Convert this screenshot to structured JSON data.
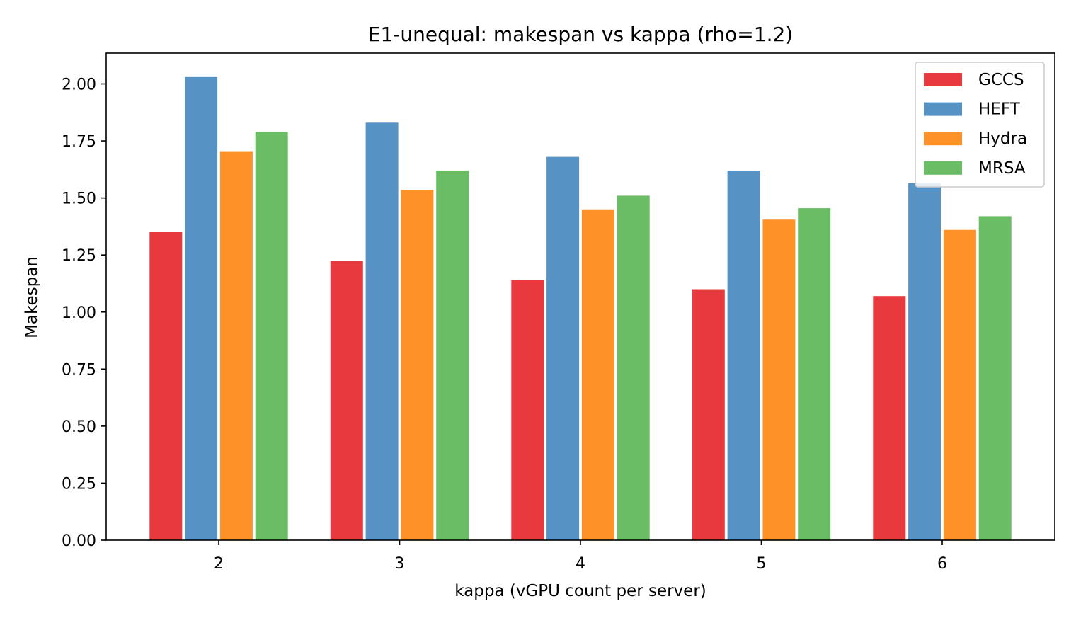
{
  "chart_data": {
    "type": "bar",
    "title": "E1-unequal: makespan vs kappa (rho=1.2)",
    "xlabel": "kappa (vGPU count per server)",
    "ylabel": "Makespan",
    "categories": [
      "2",
      "3",
      "4",
      "5",
      "6"
    ],
    "ylim": [
      0,
      2.135
    ],
    "yticks": [
      "0.00",
      "0.25",
      "0.50",
      "0.75",
      "1.00",
      "1.25",
      "1.50",
      "1.75",
      "2.00"
    ],
    "legend_position": "top-right",
    "grid": false,
    "series": [
      {
        "name": "GCCS",
        "color": "#e8393e",
        "values": [
          1.35,
          1.225,
          1.14,
          1.1,
          1.07
        ]
      },
      {
        "name": "HEFT",
        "color": "#5692c3",
        "values": [
          2.03,
          1.83,
          1.68,
          1.62,
          1.565
        ]
      },
      {
        "name": "Hydra",
        "color": "#fe9229",
        "values": [
          1.705,
          1.535,
          1.45,
          1.405,
          1.36
        ]
      },
      {
        "name": "MRSA",
        "color": "#6abc65",
        "values": [
          1.79,
          1.62,
          1.51,
          1.455,
          1.42
        ]
      }
    ]
  }
}
